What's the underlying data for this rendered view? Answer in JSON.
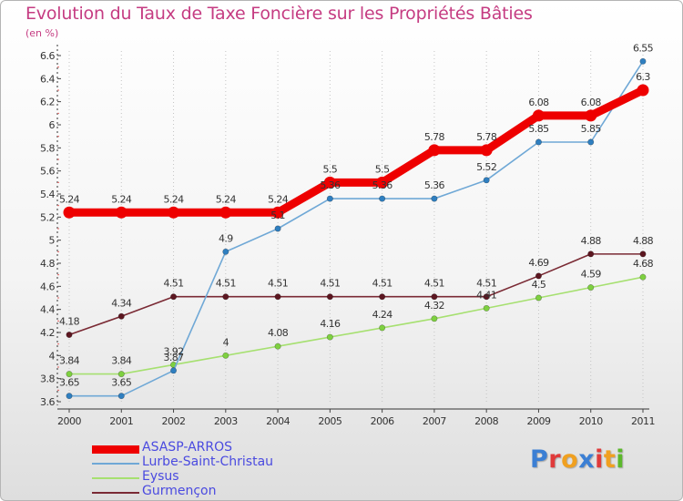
{
  "chart_data": {
    "type": "line",
    "title": "Evolution du Taux de Taxe Foncière sur les Propriétés Bâties",
    "subtitle": "(en %)",
    "xlabel": "",
    "ylabel": "",
    "x": [
      "2000",
      "2001",
      "2002",
      "2003",
      "2004",
      "2005",
      "2006",
      "2007",
      "2008",
      "2009",
      "2010",
      "2011"
    ],
    "ylim": [
      3.6,
      6.6
    ],
    "yticks": [
      "3.6",
      "3.8",
      "4",
      "4.2",
      "4.4",
      "4.6",
      "4.8",
      "5",
      "5.2",
      "5.4",
      "5.6",
      "5.8",
      "6",
      "6.2",
      "6.4",
      "6.6"
    ],
    "grid": "vertical dotted",
    "legend_position": "bottom-left",
    "series": [
      {
        "name": "ASASP-ARROS",
        "color": "#ee0000",
        "marker_color": "#ee0000",
        "values": [
          5.24,
          5.24,
          5.24,
          5.24,
          5.24,
          5.5,
          5.5,
          5.78,
          5.78,
          6.08,
          6.08,
          6.3
        ],
        "labels": [
          "5.24",
          "5.24",
          "5.24",
          "5.24",
          "5.24",
          "5.5",
          "5.5",
          "5.78",
          "5.78",
          "6.08",
          "6.08",
          "6.3"
        ]
      },
      {
        "name": "Lurbe-Saint-Christau",
        "color": "#6fa8d6",
        "marker_color": "#2f7fc0",
        "values": [
          3.65,
          3.65,
          3.87,
          4.9,
          5.1,
          5.36,
          5.36,
          5.36,
          5.52,
          5.85,
          5.85,
          6.55
        ],
        "labels": [
          "3.65",
          "3.65",
          "3.87",
          "4.9",
          "5.1",
          "5.36",
          "5.36",
          "5.36",
          "5.52",
          "5.85",
          "5.85",
          "6.55"
        ]
      },
      {
        "name": "Eysus",
        "color": "#a6e070",
        "marker_color": "#7ed040",
        "values": [
          3.84,
          3.84,
          3.92,
          4.0,
          4.08,
          4.16,
          4.24,
          4.32,
          4.41,
          4.5,
          4.59,
          4.68
        ],
        "labels": [
          "3.84",
          "3.84",
          "3.92",
          "4",
          "4.08",
          "4.16",
          "4.24",
          "4.32",
          "4.41",
          "4.5",
          "4.59",
          "4.68"
        ]
      },
      {
        "name": "Gurmençon",
        "color": "#7a2a34",
        "marker_color": "#5c1620",
        "values": [
          4.18,
          4.34,
          4.51,
          4.51,
          4.51,
          4.51,
          4.51,
          4.51,
          4.51,
          4.69,
          4.88,
          4.88
        ],
        "labels": [
          "4.18",
          "4.34",
          "4.51",
          "4.51",
          "4.51",
          "4.51",
          "4.51",
          "4.51",
          "4.51",
          "4.69",
          "4.88",
          "4.88"
        ]
      }
    ]
  },
  "logo": {
    "text": "Proxiti",
    "letters": [
      {
        "char": "P",
        "color": "#3b7fd4"
      },
      {
        "char": "r",
        "color": "#e03a3a"
      },
      {
        "char": "o",
        "color": "#f0a020"
      },
      {
        "char": "x",
        "color": "#3b7fd4"
      },
      {
        "char": "i",
        "color": "#e03a3a"
      },
      {
        "char": "t",
        "color": "#f0a020"
      },
      {
        "char": "i",
        "color": "#5cb82c"
      }
    ]
  }
}
